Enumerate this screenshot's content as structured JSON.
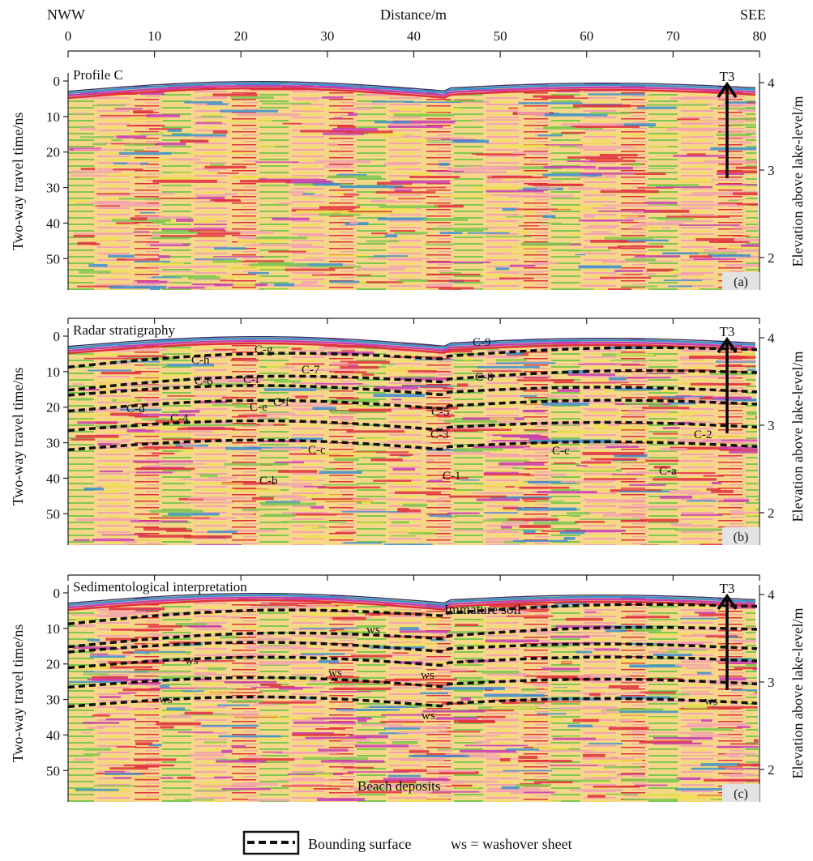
{
  "header": {
    "distance_title": "Distance/m",
    "left_end": "NWW",
    "right_end": "SEE",
    "distance_ticks": [
      "0",
      "10",
      "20",
      "30",
      "40",
      "50",
      "60",
      "70",
      "80"
    ]
  },
  "axes": {
    "left_title": "Two-way travel time/ns",
    "right_title": "Elevation above lake-level/m",
    "time_ticks": [
      "0",
      "10",
      "20",
      "30",
      "40",
      "50"
    ],
    "elev_ticks": [
      "4",
      "3",
      "2"
    ]
  },
  "panels": [
    {
      "id": "a",
      "title": "Profile C",
      "badge": "(a)",
      "marker": "T3",
      "annotations": []
    },
    {
      "id": "b",
      "title": "Radar stratigraphy",
      "badge": "(b)",
      "marker": "T3",
      "annotations": [
        "C-9",
        "C-8",
        "C-7",
        "C-6",
        "C-5",
        "C-4",
        "C-3",
        "C-2",
        "C-1",
        "C-h",
        "C-g",
        "C-f",
        "C-f",
        "C-e",
        "C-d",
        "C-c",
        "C-c",
        "C-b",
        "C-a"
      ]
    },
    {
      "id": "c",
      "title": "Sedimentological interpretation",
      "badge": "(c)",
      "marker": "T3",
      "annotations": [
        "Immature soil",
        "ws",
        "ws",
        "ws",
        "ws",
        "ws",
        "ws",
        "ws",
        "Beach deposits"
      ]
    }
  ],
  "legend": {
    "bounding_label": "Bounding surface",
    "ws_label": "ws = washover sheet"
  },
  "colors": {
    "radar_base": "#f6d78a",
    "radar_red": "#e0303c",
    "radar_pink": "#f3a3b0",
    "radar_green": "#7ec850",
    "radar_blue": "#3c8fd0",
    "radar_magenta": "#c83cb4",
    "radar_yellow": "#f0e050"
  }
}
